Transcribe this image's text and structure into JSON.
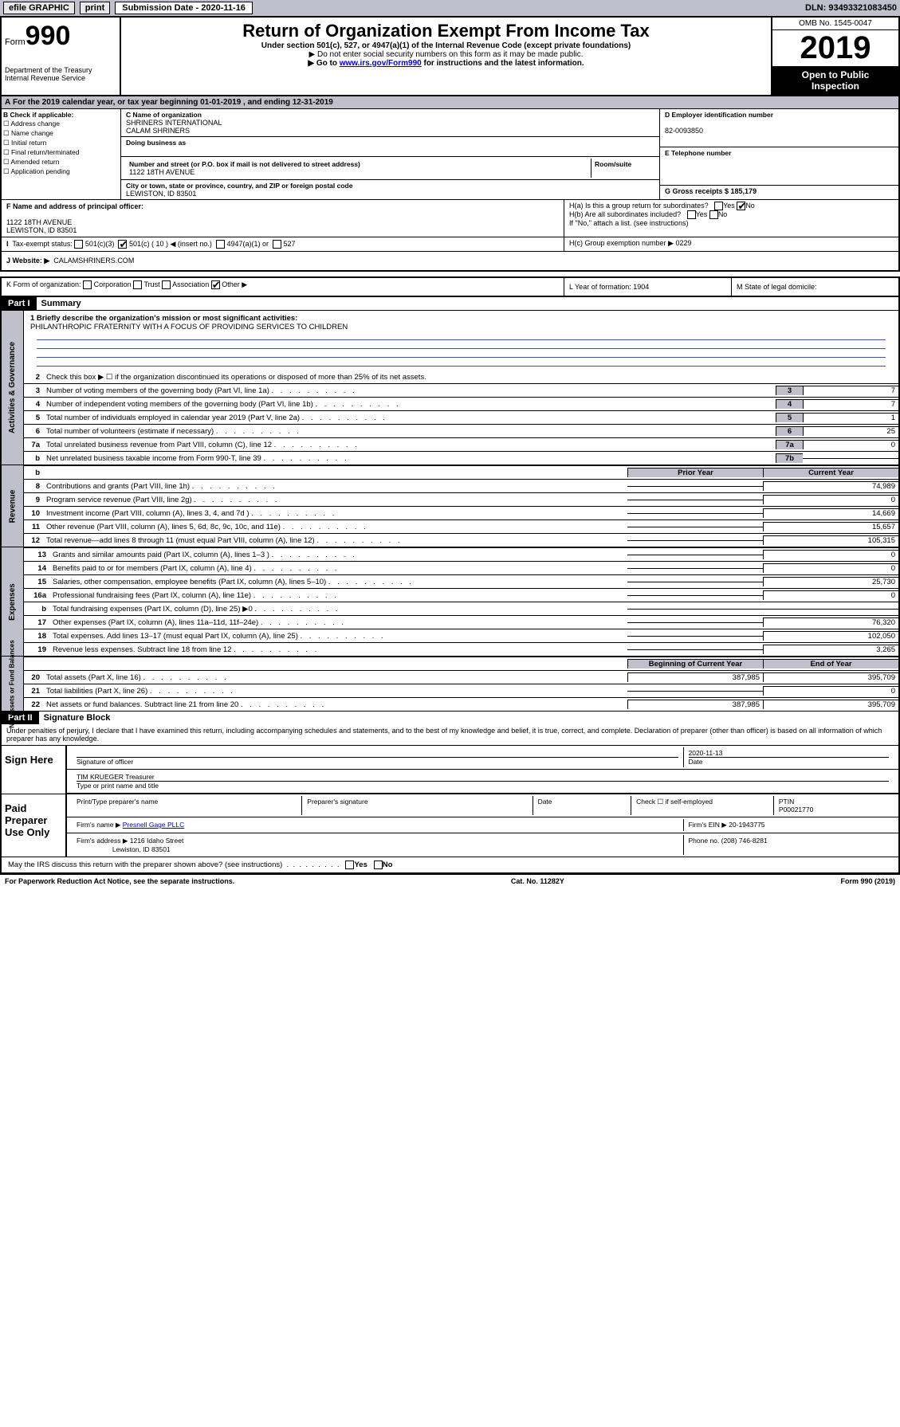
{
  "topbar": {
    "efile": "efile GRAPHIC",
    "print": "print",
    "subdate_label": "Submission Date - 2020-11-16",
    "dln": "DLN: 93493321083450"
  },
  "header": {
    "form_pre": "Form",
    "form_num": "990",
    "dept": "Department of the Treasury",
    "irs": "Internal Revenue Service",
    "title": "Return of Organization Exempt From Income Tax",
    "subtitle": "Under section 501(c), 527, or 4947(a)(1) of the Internal Revenue Code (except private foundations)",
    "note1": "▶ Do not enter social security numbers on this form as it may be made public.",
    "note2_pre": "▶ Go to ",
    "note2_link": "www.irs.gov/Form990",
    "note2_post": " for instructions and the latest information.",
    "omb": "OMB No. 1545-0047",
    "year": "2019",
    "otp1": "Open to Public",
    "otp2": "Inspection"
  },
  "a_line": "For the 2019 calendar year, or tax year beginning 01-01-2019   , and ending 12-31-2019",
  "b": {
    "label": "B Check if applicable:",
    "opts": [
      "Address change",
      "Name change",
      "Initial return",
      "Final return/terminated",
      "Amended return",
      "Application pending"
    ]
  },
  "c": {
    "name_lbl": "C Name of organization",
    "name1": "SHRINERS INTERNATIONAL",
    "name2": "CALAM SHRINERS",
    "dba_lbl": "Doing business as",
    "addr_lbl": "Number and street (or P.O. box if mail is not delivered to street address)",
    "room_lbl": "Room/suite",
    "addr": "1122 18TH AVENUE",
    "city_lbl": "City or town, state or province, country, and ZIP or foreign postal code",
    "city": "LEWISTON, ID  83501"
  },
  "d": {
    "lbl": "D Employer identification number",
    "val": "82-0093850"
  },
  "e": {
    "lbl": "E Telephone number"
  },
  "g": {
    "lbl": "G Gross receipts $ 185,179"
  },
  "f": {
    "lbl": "F  Name and address of principal officer:",
    "addr1": "1122 18TH AVENUE",
    "addr2": "LEWISTON, ID  83501"
  },
  "h": {
    "a": "H(a)  Is this a group return for subordinates?",
    "b": "H(b)  Are all subordinates included?",
    "b_note": "If \"No,\" attach a list. (see instructions)",
    "c": "H(c)  Group exemption number ▶  0229",
    "yes": "Yes",
    "no": "No"
  },
  "i": {
    "lbl": "Tax-exempt status:",
    "o1": "501(c)(3)",
    "o2": "501(c) ( 10 ) ◀ (insert no.)",
    "o3": "4947(a)(1) or",
    "o4": "527"
  },
  "j": {
    "lbl": "J   Website: ▶",
    "val": "CALAMSHRINERS.COM"
  },
  "k": {
    "lbl": "K Form of organization:",
    "o1": "Corporation",
    "o2": "Trust",
    "o3": "Association",
    "o4": "Other ▶"
  },
  "l": {
    "lbl": "L Year of formation: 1904"
  },
  "m": {
    "lbl": "M State of legal domicile:"
  },
  "part1": {
    "hdr": "Part I",
    "title": "Summary"
  },
  "summary": {
    "l1": "1  Briefly describe the organization's mission or most significant activities:",
    "mission": "PHILANTHROPIC FRATERNITY WITH A FOCUS OF PROVIDING SERVICES TO CHILDREN",
    "l2": "Check this box ▶ ☐  if the organization discontinued its operations or disposed of more than 25% of its net assets.",
    "rows_gov": [
      {
        "n": "3",
        "d": "Number of voting members of the governing body (Part VI, line 1a)",
        "c": "3",
        "v": "7"
      },
      {
        "n": "4",
        "d": "Number of independent voting members of the governing body (Part VI, line 1b)",
        "c": "4",
        "v": "7"
      },
      {
        "n": "5",
        "d": "Total number of individuals employed in calendar year 2019 (Part V, line 2a)",
        "c": "5",
        "v": "1"
      },
      {
        "n": "6",
        "d": "Total number of volunteers (estimate if necessary)",
        "c": "6",
        "v": "25"
      },
      {
        "n": "7a",
        "d": "Total unrelated business revenue from Part VIII, column (C), line 12",
        "c": "7a",
        "v": "0"
      },
      {
        "n": "b",
        "d": "Net unrelated business taxable income from Form 990-T, line 39",
        "c": "7b",
        "v": ""
      }
    ],
    "prior": "Prior Year",
    "current": "Current Year",
    "rows_rev": [
      {
        "n": "8",
        "d": "Contributions and grants (Part VIII, line 1h)",
        "v": "74,989"
      },
      {
        "n": "9",
        "d": "Program service revenue (Part VIII, line 2g)",
        "v": "0"
      },
      {
        "n": "10",
        "d": "Investment income (Part VIII, column (A), lines 3, 4, and 7d )",
        "v": "14,669"
      },
      {
        "n": "11",
        "d": "Other revenue (Part VIII, column (A), lines 5, 6d, 8c, 9c, 10c, and 11e)",
        "v": "15,657"
      },
      {
        "n": "12",
        "d": "Total revenue—add lines 8 through 11 (must equal Part VIII, column (A), line 12)",
        "v": "105,315"
      }
    ],
    "rows_exp": [
      {
        "n": "13",
        "d": "Grants and similar amounts paid (Part IX, column (A), lines 1–3 )",
        "v": "0"
      },
      {
        "n": "14",
        "d": "Benefits paid to or for members (Part IX, column (A), line 4)",
        "v": "0"
      },
      {
        "n": "15",
        "d": "Salaries, other compensation, employee benefits (Part IX, column (A), lines 5–10)",
        "v": "25,730"
      },
      {
        "n": "16a",
        "d": "Professional fundraising fees (Part IX, column (A), line 11e)",
        "v": "0"
      },
      {
        "n": "b",
        "d": "Total fundraising expenses (Part IX, column (D), line 25) ▶0",
        "v": "",
        "grey": true
      },
      {
        "n": "17",
        "d": "Other expenses (Part IX, column (A), lines 11a–11d, 11f–24e)",
        "v": "76,320"
      },
      {
        "n": "18",
        "d": "Total expenses. Add lines 13–17 (must equal Part IX, column (A), line 25)",
        "v": "102,050"
      },
      {
        "n": "19",
        "d": "Revenue less expenses. Subtract line 18 from line 12",
        "v": "3,265"
      }
    ],
    "begin": "Beginning of Current Year",
    "end": "End of Year",
    "rows_net": [
      {
        "n": "20",
        "d": "Total assets (Part X, line 16)",
        "p": "387,985",
        "v": "395,709"
      },
      {
        "n": "21",
        "d": "Total liabilities (Part X, line 26)",
        "p": "",
        "v": "0"
      },
      {
        "n": "22",
        "d": "Net assets or fund balances. Subtract line 21 from line 20",
        "p": "387,985",
        "v": "395,709"
      }
    ],
    "side_gov": "Activities & Governance",
    "side_rev": "Revenue",
    "side_exp": "Expenses",
    "side_net": "Net Assets or Fund Balances"
  },
  "part2": {
    "hdr": "Part II",
    "title": "Signature Block"
  },
  "sig": {
    "text": "Under penalties of perjury, I declare that I have examined this return, including accompanying schedules and statements, and to the best of my knowledge and belief, it is true, correct, and complete. Declaration of preparer (other than officer) is based on all information of which preparer has any knowledge.",
    "sign_here": "Sign Here",
    "sig_officer": "Signature of officer",
    "date": "2020-11-13",
    "date_lbl": "Date",
    "name": "TIM KRUEGER Treasurer",
    "name_lbl": "Type or print name and title",
    "paid": "Paid Preparer Use Only",
    "pt_name": "Print/Type preparer's name",
    "pt_sig": "Preparer's signature",
    "pt_date": "Date",
    "pt_check": "Check ☐ if self-employed",
    "ptin_lbl": "PTIN",
    "ptin": "P00021770",
    "firm_name_lbl": "Firm's name    ▶",
    "firm_name": "Presnell Gage PLLC",
    "firm_ein": "Firm's EIN ▶ 20-1943775",
    "firm_addr_lbl": "Firm's address ▶",
    "firm_addr1": "1216 Idaho Street",
    "firm_addr2": "Lewiston, ID  83501",
    "phone": "Phone no. (208) 746-8281",
    "discuss": "May the IRS discuss this return with the preparer shown above? (see instructions)",
    "yes": "Yes",
    "no": "No"
  },
  "footer": {
    "l": "For Paperwork Reduction Act Notice, see the separate instructions.",
    "c": "Cat. No. 11282Y",
    "r": "Form 990 (2019)"
  }
}
